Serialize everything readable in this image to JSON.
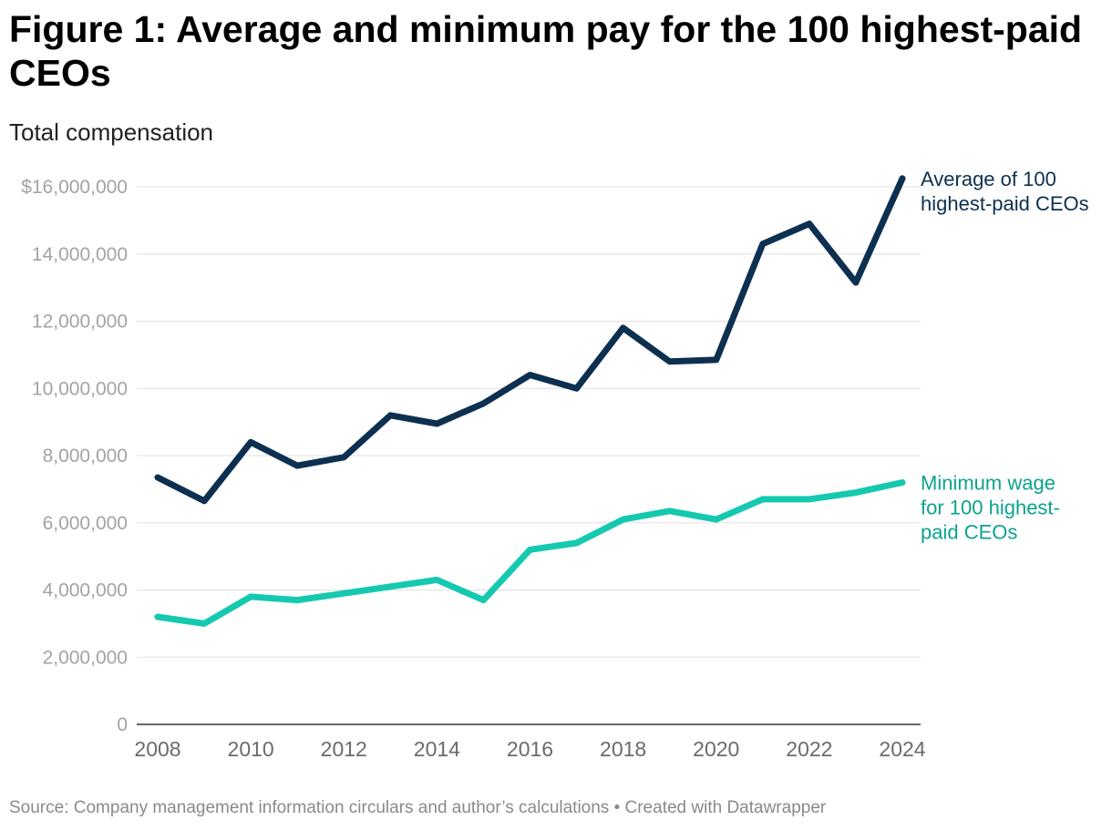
{
  "title": "Figure 1: Average and minimum pay for the 100 highest-paid CEOs",
  "subtitle": "Total compensation",
  "source": "Source: Company management information circulars and author’s calculations • Created with Datawrapper",
  "chart_data": {
    "type": "line",
    "title": "Figure 1: Average and minimum pay for the 100 highest-paid CEOs",
    "ylabel": "Total compensation",
    "xlabel": "",
    "x": [
      2008,
      2009,
      2010,
      2011,
      2012,
      2013,
      2014,
      2015,
      2016,
      2017,
      2018,
      2019,
      2020,
      2021,
      2022,
      2023,
      2024
    ],
    "x_ticks": [
      "2008",
      "2010",
      "2012",
      "2014",
      "2016",
      "2018",
      "2020",
      "2022",
      "2024"
    ],
    "y_ticks": [
      "$16,000,000",
      "14,000,000",
      "12,000,000",
      "10,000,000",
      "8,000,000",
      "6,000,000",
      "4,000,000",
      "2,000,000",
      "0"
    ],
    "ylim": [
      0,
      16000000
    ],
    "grid": true,
    "series": [
      {
        "name": "Average of 100 highest-paid CEOs",
        "label_lines": [
          "Average of 100",
          "highest-paid CEOs"
        ],
        "color": "#0d3050",
        "values": [
          7350000,
          6650000,
          8400000,
          7700000,
          7950000,
          9200000,
          8950000,
          9550000,
          10400000,
          10000000,
          11800000,
          10800000,
          10850000,
          14300000,
          14900000,
          13150000,
          16250000
        ]
      },
      {
        "name": "Minimum wage for 100 highest-paid CEOs",
        "label_lines": [
          "Minimum wage",
          "for 100 highest-",
          "paid CEOs"
        ],
        "color": "#15c9b0",
        "label_color": "#0ba38d",
        "values": [
          3200000,
          3000000,
          3800000,
          3700000,
          3900000,
          4100000,
          4300000,
          3700000,
          5200000,
          5400000,
          6100000,
          6350000,
          6100000,
          6700000,
          6700000,
          6900000,
          7200000
        ]
      }
    ]
  }
}
